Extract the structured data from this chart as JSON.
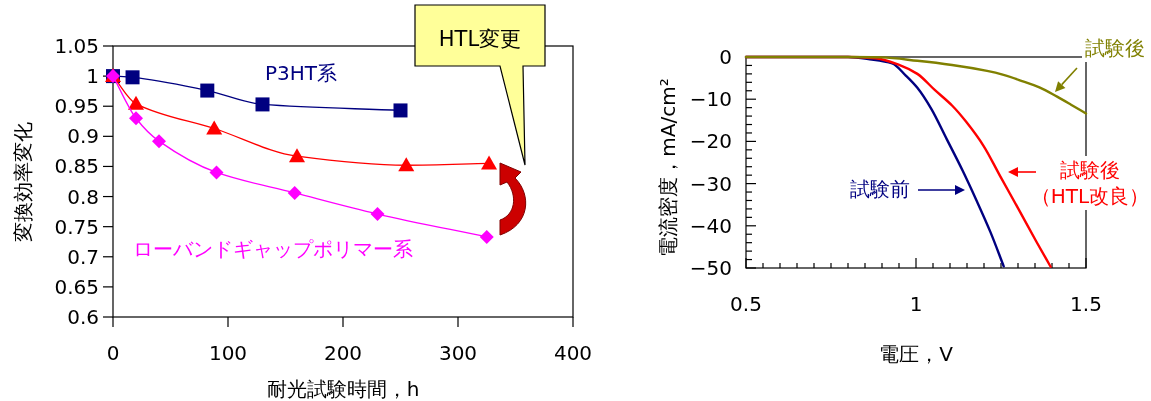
{
  "chart_data": [
    {
      "type": "line",
      "xlabel": "耐光試験時間，h",
      "ylabel": "変換効率変化",
      "xlim": [
        0,
        400
      ],
      "xticks": [
        0,
        100,
        200,
        300,
        400
      ],
      "ylim": [
        0.6,
        1.05
      ],
      "yticks": [
        0.6,
        0.65,
        0.7,
        0.75,
        0.8,
        0.85,
        0.9,
        0.95,
        1,
        1.05
      ],
      "grid": false,
      "annotations": [
        "HTL変更"
      ],
      "series": [
        {
          "name": "P3HT系",
          "color": "#000080",
          "marker": "square",
          "x": [
            0,
            17,
            82,
            130,
            250
          ],
          "values": [
            1.0,
            0.998,
            0.976,
            0.953,
            0.943
          ]
        },
        {
          "color": "#ff0000",
          "marker": "triangle",
          "x": [
            0,
            20,
            88,
            160,
            255,
            327
          ],
          "values": [
            1.0,
            0.954,
            0.913,
            0.867,
            0.852,
            0.855
          ]
        },
        {
          "name": "ローバンドギャップポリマー系",
          "color": "#ff00ff",
          "marker": "diamond",
          "x": [
            0,
            20,
            40,
            90,
            158,
            230,
            325
          ],
          "values": [
            1.0,
            0.93,
            0.892,
            0.84,
            0.806,
            0.771,
            0.733
          ]
        }
      ]
    },
    {
      "type": "line",
      "xlabel": "電圧，V",
      "ylabel": "電流密度，mA/cm²",
      "xlim": [
        0.5,
        1.5
      ],
      "xticks": [
        0.5,
        {
          "value": 0.55,
          "label": null
        },
        {
          "value": 0.6,
          "label": null
        },
        {
          "value": 0.65,
          "label": null
        },
        {
          "value": 0.7,
          "label": null
        },
        {
          "value": 0.75,
          "label": null
        },
        {
          "value": 0.8,
          "label": null
        },
        {
          "value": 0.85,
          "label": null
        },
        {
          "value": 0.9,
          "label": null
        },
        {
          "value": 0.95,
          "label": null
        },
        1,
        {
          "value": 1.05,
          "label": null
        },
        {
          "value": 1.1,
          "label": null
        },
        {
          "value": 1.15,
          "label": null
        },
        {
          "value": 1.2,
          "label": null
        },
        {
          "value": 1.25,
          "label": null
        },
        {
          "value": 1.3,
          "label": null
        },
        {
          "value": 1.35,
          "label": null
        },
        {
          "value": 1.4,
          "label": null
        },
        {
          "value": 1.45,
          "label": null
        },
        1.5
      ],
      "ylim": [
        -50,
        0
      ],
      "yticks": [
        {
          "value": 0,
          "label": "0"
        },
        {
          "value": -2,
          "label": null
        },
        {
          "value": -4,
          "label": null
        },
        {
          "value": -6,
          "label": null
        },
        {
          "value": -8,
          "label": null
        },
        {
          "value": -10,
          "label": "−10"
        },
        {
          "value": -12,
          "label": null
        },
        {
          "value": -14,
          "label": null
        },
        {
          "value": -16,
          "label": null
        },
        {
          "value": -18,
          "label": null
        },
        {
          "value": -20,
          "label": "−20"
        },
        {
          "value": -22,
          "label": null
        },
        {
          "value": -24,
          "label": null
        },
        {
          "value": -26,
          "label": null
        },
        {
          "value": -28,
          "label": null
        },
        {
          "value": -30,
          "label": "−30"
        },
        {
          "value": -32,
          "label": null
        },
        {
          "value": -34,
          "label": null
        },
        {
          "value": -36,
          "label": null
        },
        {
          "value": -38,
          "label": null
        },
        {
          "value": -40,
          "label": "−40"
        },
        {
          "value": -42,
          "label": null
        },
        {
          "value": -44,
          "label": null
        },
        {
          "value": -46,
          "label": null
        },
        {
          "value": -48,
          "label": null
        },
        {
          "value": -50,
          "label": "−50"
        }
      ],
      "grid": false,
      "marker": "none",
      "series": [
        {
          "name": "試験前",
          "color": "#000080",
          "x": [
            0.5,
            0.8,
            0.87,
            0.93,
            0.97,
            1.004,
            1.045,
            1.09,
            1.137,
            1.178,
            1.219,
            1.258
          ],
          "values": [
            0,
            0,
            -0.6,
            -1.5,
            -4.4,
            -7.3,
            -12.3,
            -19.4,
            -26.9,
            -34,
            -41.5,
            -49.6
          ]
        },
        {
          "name": "試験後（HTL改良）",
          "color": "#ff0000",
          "x": [
            0.5,
            0.8,
            0.88,
            0.952,
            1.004,
            1.055,
            1.106,
            1.147,
            1.199,
            1.25,
            1.302,
            1.353,
            1.396
          ],
          "values": [
            0,
            0,
            -0.3,
            -1.9,
            -4,
            -7.8,
            -11.5,
            -15.3,
            -21.1,
            -28.6,
            -36.1,
            -43.6,
            -49.7
          ]
        },
        {
          "name": "試験後",
          "color": "#808000",
          "x": [
            0.5,
            0.8,
            0.9,
            1.004,
            1.106,
            1.209,
            1.26,
            1.312,
            1.363,
            1.415,
            1.456,
            1.5
          ],
          "values": [
            0,
            0,
            -0.1,
            -0.9,
            -1.9,
            -3.3,
            -4.3,
            -5.7,
            -7.2,
            -9.4,
            -11.3,
            -13.4
          ]
        }
      ]
    }
  ]
}
